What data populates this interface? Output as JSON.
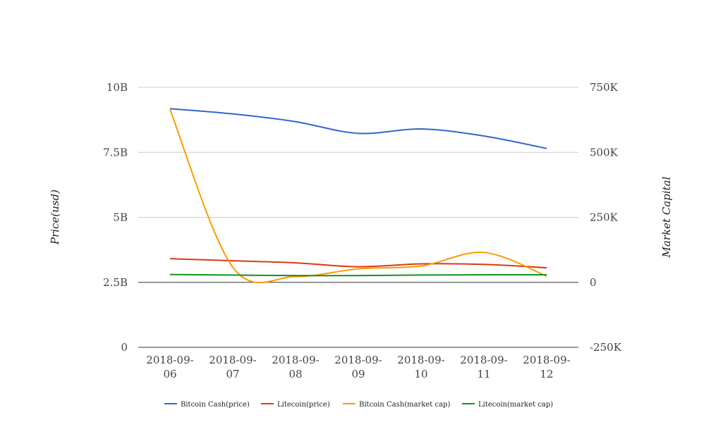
{
  "chart_data": {
    "type": "line",
    "title": "",
    "categories": [
      "2018-09-06",
      "2018-09-07",
      "2018-09-08",
      "2018-09-09",
      "2018-09-10",
      "2018-09-11",
      "2018-09-12"
    ],
    "x_tick_lines": [
      [
        "2018-09-",
        "06"
      ],
      [
        "2018-09-",
        "07"
      ],
      [
        "2018-09-",
        "08"
      ],
      [
        "2018-09-",
        "09"
      ],
      [
        "2018-09-",
        "10"
      ],
      [
        "2018-09-",
        "11"
      ],
      [
        "2018-09-",
        "12"
      ]
    ],
    "left_axis": {
      "label": "Price(usd)",
      "range": [
        0,
        10000000000
      ],
      "ticks": [
        0,
        2500000000,
        5000000000,
        7500000000,
        10000000000
      ],
      "tick_labels": [
        "0",
        "2.5B",
        "5B",
        "7.5B",
        "10B"
      ]
    },
    "right_axis": {
      "label": "Market Capital",
      "range": [
        -250000,
        750000
      ],
      "ticks": [
        -250000,
        0,
        250000,
        500000,
        750000
      ],
      "tick_labels": [
        "-250K",
        "0",
        "250K",
        "500K",
        "750K"
      ]
    },
    "grid": true,
    "legend_position": "bottom",
    "series": [
      {
        "name": "Bitcoin Cash(price)",
        "axis": "left",
        "color": "#3366cc",
        "values": [
          9180000000,
          8980000000,
          8680000000,
          8230000000,
          8400000000,
          8130000000,
          7650000000
        ]
      },
      {
        "name": "Litecoin(price)",
        "axis": "left",
        "color": "#dc3912",
        "values": [
          3410000000,
          3330000000,
          3250000000,
          3100000000,
          3210000000,
          3190000000,
          3060000000
        ]
      },
      {
        "name": "Bitcoin Cash(market cap)",
        "axis": "right",
        "color": "#ff9900",
        "values": [
          665000,
          58000,
          22000,
          52000,
          63000,
          115000,
          24000
        ]
      },
      {
        "name": "Litecoin(market cap)",
        "axis": "right",
        "color": "#109618",
        "values": [
          30000,
          28000,
          26000,
          26000,
          28000,
          29000,
          29000
        ]
      }
    ]
  }
}
